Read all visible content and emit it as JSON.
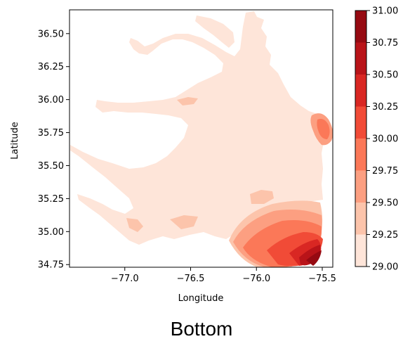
{
  "caption": "Bottom",
  "chart_data": {
    "type": "contour-map",
    "xlabel": "Longitude",
    "ylabel": "Latitude",
    "xlim": [
      -77.42,
      -75.42
    ],
    "ylim": [
      34.73,
      36.68
    ],
    "xticks": [
      {
        "value": -77.0,
        "label": "−77.0"
      },
      {
        "value": -76.5,
        "label": "−76.5"
      },
      {
        "value": -76.0,
        "label": "−76.0"
      },
      {
        "value": -75.5,
        "label": "−75.5"
      }
    ],
    "yticks": [
      {
        "value": 34.75,
        "label": "34.75"
      },
      {
        "value": 35.0,
        "label": "35.00"
      },
      {
        "value": 35.25,
        "label": "35.25"
      },
      {
        "value": 35.5,
        "label": "35.50"
      },
      {
        "value": 35.75,
        "label": "35.75"
      },
      {
        "value": 36.0,
        "label": "36.00"
      },
      {
        "value": 36.25,
        "label": "36.25"
      },
      {
        "value": 36.5,
        "label": "36.50"
      }
    ],
    "colorbar": {
      "colormap": "Reds",
      "levels": [
        29.0,
        29.25,
        29.5,
        29.75,
        30.0,
        30.25,
        30.5,
        30.75,
        31.0
      ],
      "labels": [
        "29.00",
        "29.25",
        "29.50",
        "29.75",
        "30.00",
        "30.25",
        "30.50",
        "30.75",
        "31.00"
      ],
      "colors": [
        "#fee5d9",
        "#fcc4ab",
        "#fc9f81",
        "#fb7858",
        "#f14b37",
        "#d92723",
        "#b91419",
        "#960a12"
      ]
    },
    "fields": [
      {
        "level_band": [
          29.0,
          29.25
        ],
        "region": "estuary body, sounds and tributaries"
      },
      {
        "level_band": [
          29.25,
          29.5
        ],
        "region": "south-east coastal zone"
      },
      {
        "level_band": [
          29.5,
          30.0
        ],
        "region": "north-east inlet and south-east lobe"
      },
      {
        "level_band": [
          30.0,
          31.0
        ],
        "region": "south-east corner near -75.6, 34.85"
      }
    ],
    "grid": false,
    "legend": "colorbar-right"
  }
}
